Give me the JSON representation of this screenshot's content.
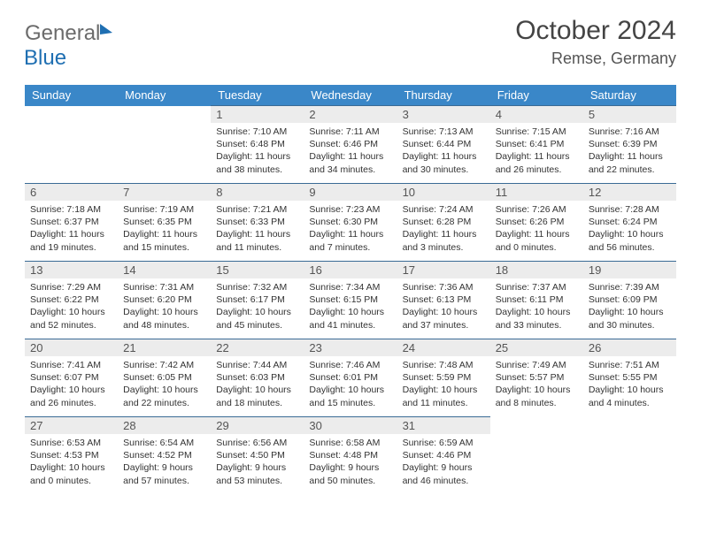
{
  "brand": {
    "part1": "General",
    "part2": "Blue"
  },
  "title": {
    "month": "October 2024",
    "location": "Remse, Germany"
  },
  "colors": {
    "header_bg": "#3a87c8",
    "header_text": "#ffffff",
    "cell_border": "#3a6b95",
    "daynum_bg": "#ececec",
    "text": "#333333",
    "brand_gray": "#6b6b6b",
    "brand_blue": "#1f6fb2"
  },
  "weekdays": [
    "Sunday",
    "Monday",
    "Tuesday",
    "Wednesday",
    "Thursday",
    "Friday",
    "Saturday"
  ],
  "weeks": [
    [
      null,
      null,
      {
        "n": "1",
        "sr": "7:10 AM",
        "ss": "6:48 PM",
        "dl": "11 hours and 38 minutes."
      },
      {
        "n": "2",
        "sr": "7:11 AM",
        "ss": "6:46 PM",
        "dl": "11 hours and 34 minutes."
      },
      {
        "n": "3",
        "sr": "7:13 AM",
        "ss": "6:44 PM",
        "dl": "11 hours and 30 minutes."
      },
      {
        "n": "4",
        "sr": "7:15 AM",
        "ss": "6:41 PM",
        "dl": "11 hours and 26 minutes."
      },
      {
        "n": "5",
        "sr": "7:16 AM",
        "ss": "6:39 PM",
        "dl": "11 hours and 22 minutes."
      }
    ],
    [
      {
        "n": "6",
        "sr": "7:18 AM",
        "ss": "6:37 PM",
        "dl": "11 hours and 19 minutes."
      },
      {
        "n": "7",
        "sr": "7:19 AM",
        "ss": "6:35 PM",
        "dl": "11 hours and 15 minutes."
      },
      {
        "n": "8",
        "sr": "7:21 AM",
        "ss": "6:33 PM",
        "dl": "11 hours and 11 minutes."
      },
      {
        "n": "9",
        "sr": "7:23 AM",
        "ss": "6:30 PM",
        "dl": "11 hours and 7 minutes."
      },
      {
        "n": "10",
        "sr": "7:24 AM",
        "ss": "6:28 PM",
        "dl": "11 hours and 3 minutes."
      },
      {
        "n": "11",
        "sr": "7:26 AM",
        "ss": "6:26 PM",
        "dl": "11 hours and 0 minutes."
      },
      {
        "n": "12",
        "sr": "7:28 AM",
        "ss": "6:24 PM",
        "dl": "10 hours and 56 minutes."
      }
    ],
    [
      {
        "n": "13",
        "sr": "7:29 AM",
        "ss": "6:22 PM",
        "dl": "10 hours and 52 minutes."
      },
      {
        "n": "14",
        "sr": "7:31 AM",
        "ss": "6:20 PM",
        "dl": "10 hours and 48 minutes."
      },
      {
        "n": "15",
        "sr": "7:32 AM",
        "ss": "6:17 PM",
        "dl": "10 hours and 45 minutes."
      },
      {
        "n": "16",
        "sr": "7:34 AM",
        "ss": "6:15 PM",
        "dl": "10 hours and 41 minutes."
      },
      {
        "n": "17",
        "sr": "7:36 AM",
        "ss": "6:13 PM",
        "dl": "10 hours and 37 minutes."
      },
      {
        "n": "18",
        "sr": "7:37 AM",
        "ss": "6:11 PM",
        "dl": "10 hours and 33 minutes."
      },
      {
        "n": "19",
        "sr": "7:39 AM",
        "ss": "6:09 PM",
        "dl": "10 hours and 30 minutes."
      }
    ],
    [
      {
        "n": "20",
        "sr": "7:41 AM",
        "ss": "6:07 PM",
        "dl": "10 hours and 26 minutes."
      },
      {
        "n": "21",
        "sr": "7:42 AM",
        "ss": "6:05 PM",
        "dl": "10 hours and 22 minutes."
      },
      {
        "n": "22",
        "sr": "7:44 AM",
        "ss": "6:03 PM",
        "dl": "10 hours and 18 minutes."
      },
      {
        "n": "23",
        "sr": "7:46 AM",
        "ss": "6:01 PM",
        "dl": "10 hours and 15 minutes."
      },
      {
        "n": "24",
        "sr": "7:48 AM",
        "ss": "5:59 PM",
        "dl": "10 hours and 11 minutes."
      },
      {
        "n": "25",
        "sr": "7:49 AM",
        "ss": "5:57 PM",
        "dl": "10 hours and 8 minutes."
      },
      {
        "n": "26",
        "sr": "7:51 AM",
        "ss": "5:55 PM",
        "dl": "10 hours and 4 minutes."
      }
    ],
    [
      {
        "n": "27",
        "sr": "6:53 AM",
        "ss": "4:53 PM",
        "dl": "10 hours and 0 minutes."
      },
      {
        "n": "28",
        "sr": "6:54 AM",
        "ss": "4:52 PM",
        "dl": "9 hours and 57 minutes."
      },
      {
        "n": "29",
        "sr": "6:56 AM",
        "ss": "4:50 PM",
        "dl": "9 hours and 53 minutes."
      },
      {
        "n": "30",
        "sr": "6:58 AM",
        "ss": "4:48 PM",
        "dl": "9 hours and 50 minutes."
      },
      {
        "n": "31",
        "sr": "6:59 AM",
        "ss": "4:46 PM",
        "dl": "9 hours and 46 minutes."
      },
      null,
      null
    ]
  ],
  "labels": {
    "sunrise": "Sunrise: ",
    "sunset": "Sunset: ",
    "daylight": "Daylight: "
  }
}
